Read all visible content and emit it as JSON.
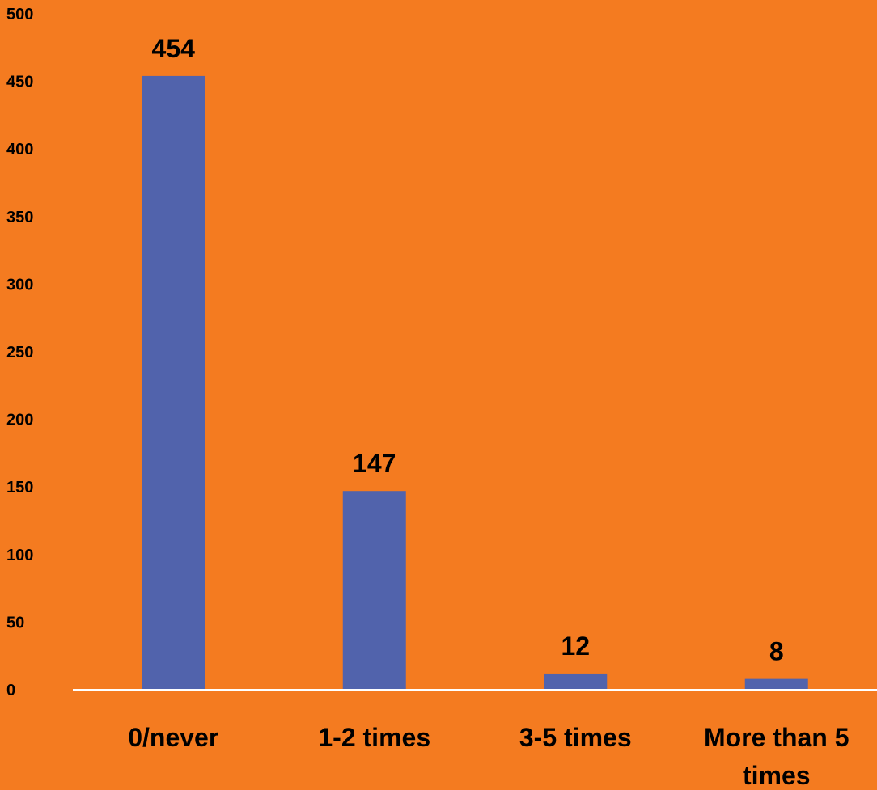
{
  "chart_data": {
    "type": "bar",
    "categories": [
      "0/never",
      "1-2 times",
      "3-5 times",
      "More than 5 times"
    ],
    "category_label_lines": [
      [
        "0/never"
      ],
      [
        "1-2 times"
      ],
      [
        "3-5 times"
      ],
      [
        "More than 5",
        "times"
      ]
    ],
    "values": [
      454,
      147,
      12,
      8
    ],
    "data_labels": [
      "454",
      "147",
      "12",
      "8"
    ],
    "ylim": [
      0,
      500
    ],
    "yticks": [
      0,
      50,
      100,
      150,
      200,
      250,
      300,
      350,
      400,
      450,
      500
    ],
    "title": "",
    "xlabel": "",
    "ylabel": "",
    "grid": false,
    "legend": "none",
    "colors": {
      "background": "#F47B20",
      "bar": "#5163AC",
      "axis_line": "#FFFFFF",
      "text": "#000000"
    }
  }
}
